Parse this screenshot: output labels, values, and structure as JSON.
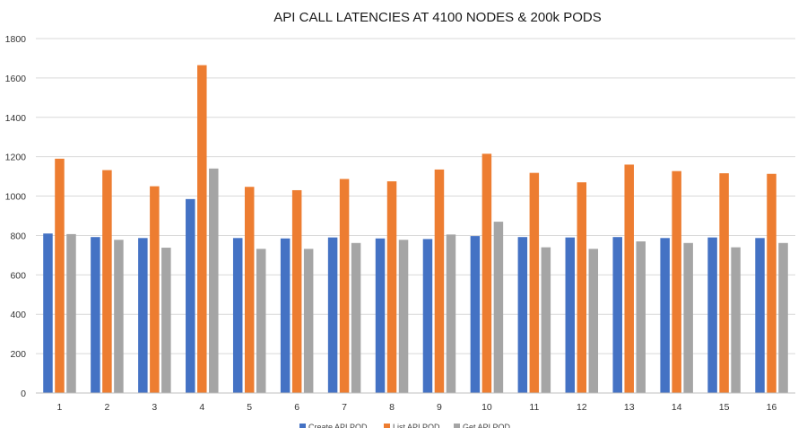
{
  "chart_data": {
    "type": "bar",
    "title": "API CALL LATENCIES AT 4100 NODES & 200k PODS",
    "xlabel": "",
    "ylabel": "",
    "ylim": [
      0,
      1800
    ],
    "y_ticks": [
      0,
      200,
      400,
      600,
      800,
      1000,
      1200,
      1400,
      1600,
      1800
    ],
    "categories": [
      "1",
      "2",
      "3",
      "4",
      "5",
      "6",
      "7",
      "8",
      "9",
      "10",
      "11",
      "12",
      "13",
      "14",
      "15",
      "16"
    ],
    "grid": true,
    "legend_position": "bottom",
    "series": [
      {
        "name": "Create API POD",
        "color": "#4472c4",
        "values": [
          810,
          792,
          787,
          985,
          787,
          785,
          790,
          785,
          782,
          797,
          792,
          790,
          792,
          787,
          790,
          787
        ]
      },
      {
        "name": "List API POD",
        "color": "#ed7d31",
        "values": [
          1190,
          1132,
          1050,
          1665,
          1047,
          1030,
          1087,
          1075,
          1135,
          1215,
          1118,
          1070,
          1160,
          1127,
          1116,
          1113
        ]
      },
      {
        "name": "Get API POD",
        "color": "#a5a5a5",
        "values": [
          807,
          778,
          738,
          1140,
          732,
          732,
          762,
          778,
          805,
          870,
          740,
          732,
          770,
          762,
          740,
          762
        ]
      }
    ]
  }
}
